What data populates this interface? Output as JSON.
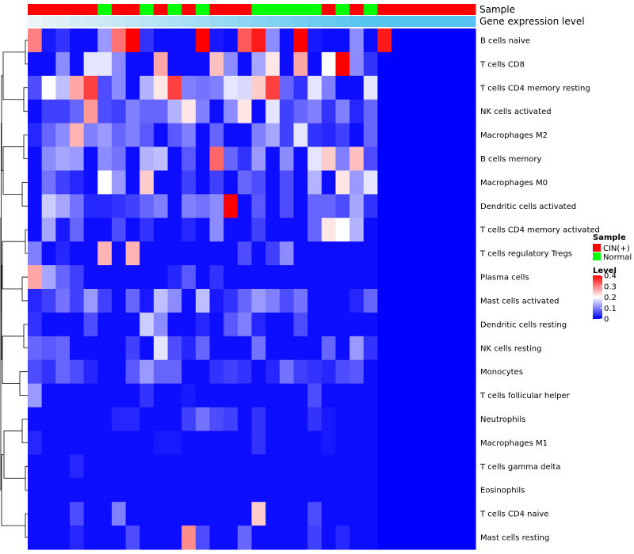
{
  "chart_data": {
    "type": "heatmap",
    "title": "",
    "annotation_tracks": [
      "Sample",
      "Gene expression level"
    ],
    "sample_groups": [
      "CIN(+)",
      "CIN(+)",
      "CIN(+)",
      "CIN(+)",
      "CIN(+)",
      "Normal",
      "CIN(+)",
      "CIN(+)",
      "Normal",
      "CIN(+)",
      "Normal",
      "CIN(+)",
      "Normal",
      "CIN(+)",
      "CIN(+)",
      "CIN(+)",
      "Normal",
      "Normal",
      "Normal",
      "Normal",
      "Normal",
      "CIN(+)",
      "Normal",
      "CIN(+)",
      "Normal",
      "CIN(+)",
      "CIN(+)",
      "CIN(+)",
      "CIN(+)",
      "CIN(+)",
      "CIN(+)",
      "CIN(+)"
    ],
    "gene_expression_level": [
      0.05,
      0.1,
      0.14,
      0.18,
      0.22,
      0.25,
      0.29,
      0.33,
      0.37,
      0.41,
      0.45,
      0.49,
      0.53,
      0.57,
      0.61,
      0.65,
      0.69,
      0.73,
      0.77,
      0.81,
      0.85,
      0.89,
      0.93,
      0.97,
      1.0,
      1.0,
      1.0,
      1.0,
      1.0,
      1.0,
      1.0,
      1.0
    ],
    "rows": [
      "B cells naive",
      "T cells CD8",
      "T cells CD4 memory resting",
      "NK cells activated",
      "Macrophages M2",
      "B cells memory",
      "Macrophages M0",
      "Dendritic cells activated",
      "T cells CD4 memory activated",
      "T cells regulatory  Tregs",
      "Plasma cells",
      "Mast cells activated",
      "Dendritic cells resting",
      "NK cells resting",
      "Monocytes",
      "T cells follicular helper",
      "Neutrophils",
      "Macrophages M1",
      "T cells gamma delta",
      "Eosinophils",
      "T cells CD4 naive",
      "Mast cells resting"
    ],
    "values": [
      [
        0.3,
        0.02,
        0.04,
        0.01,
        0.01,
        0.12,
        0.31,
        0.4,
        0.04,
        0.01,
        0.01,
        0.01,
        0.4,
        0.02,
        0.01,
        0.33,
        0.38,
        0.11,
        0.01,
        0.4,
        0.02,
        0.01,
        0.01,
        0.11,
        0.01,
        0.38,
        0.0,
        0.0,
        0.0,
        0.0,
        0.0,
        0.0
      ],
      [
        0.01,
        0.01,
        0.11,
        0.01,
        0.18,
        0.18,
        0.11,
        0.01,
        0.01,
        0.27,
        0.01,
        0.01,
        0.01,
        0.25,
        0.11,
        0.01,
        0.13,
        0.22,
        0.01,
        0.27,
        0.01,
        0.2,
        0.4,
        0.11,
        0.04,
        0.0,
        0.0,
        0.0,
        0.0,
        0.0,
        0.0,
        0.0
      ],
      [
        0.06,
        0.2,
        0.15,
        0.27,
        0.35,
        0.06,
        0.11,
        0.01,
        0.14,
        0.22,
        0.35,
        0.1,
        0.09,
        0.1,
        0.18,
        0.17,
        0.24,
        0.35,
        0.08,
        0.04,
        0.18,
        0.1,
        0.01,
        0.01,
        0.18,
        0.0,
        0.0,
        0.0,
        0.0,
        0.0,
        0.0,
        0.0
      ],
      [
        0.01,
        0.05,
        0.05,
        0.08,
        0.28,
        0.06,
        0.05,
        0.1,
        0.08,
        0.08,
        0.14,
        0.22,
        0.1,
        0.01,
        0.11,
        0.22,
        0.01,
        0.18,
        0.05,
        0.08,
        0.1,
        0.04,
        0.1,
        0.03,
        0.08,
        0.0,
        0.0,
        0.0,
        0.0,
        0.0,
        0.0,
        0.0
      ],
      [
        0.03,
        0.08,
        0.11,
        0.26,
        0.1,
        0.12,
        0.08,
        0.1,
        0.07,
        0.01,
        0.07,
        0.1,
        0.01,
        0.08,
        0.01,
        0.01,
        0.1,
        0.13,
        0.05,
        0.18,
        0.04,
        0.03,
        0.05,
        0.01,
        0.08,
        0.0,
        0.0,
        0.0,
        0.0,
        0.0,
        0.0,
        0.0
      ],
      [
        0.01,
        0.11,
        0.13,
        0.12,
        0.01,
        0.11,
        0.09,
        0.01,
        0.14,
        0.15,
        0.01,
        0.07,
        0.01,
        0.32,
        0.08,
        0.04,
        0.12,
        0.01,
        0.11,
        0.01,
        0.18,
        0.24,
        0.1,
        0.25,
        0.06,
        0.0,
        0.0,
        0.0,
        0.0,
        0.0,
        0.0,
        0.0
      ],
      [
        0.01,
        0.09,
        0.05,
        0.03,
        0.01,
        0.2,
        0.12,
        0.01,
        0.24,
        0.01,
        0.01,
        0.05,
        0.01,
        0.05,
        0.01,
        0.08,
        0.06,
        0.01,
        0.06,
        0.01,
        0.14,
        0.01,
        0.22,
        0.12,
        0.18,
        0.0,
        0.0,
        0.0,
        0.0,
        0.0,
        0.0,
        0.0
      ],
      [
        0.01,
        0.16,
        0.13,
        0.09,
        0.03,
        0.03,
        0.04,
        0.05,
        0.08,
        0.1,
        0.01,
        0.1,
        0.09,
        0.11,
        0.4,
        0.01,
        0.07,
        0.01,
        0.06,
        0.01,
        0.08,
        0.08,
        0.06,
        0.13,
        0.04,
        0.0,
        0.0,
        0.0,
        0.0,
        0.0,
        0.0,
        0.0
      ],
      [
        0.01,
        0.13,
        0.02,
        0.08,
        0.01,
        0.01,
        0.06,
        0.01,
        0.04,
        0.01,
        0.01,
        0.03,
        0.01,
        0.11,
        0.01,
        0.01,
        0.05,
        0.01,
        0.01,
        0.01,
        0.08,
        0.22,
        0.2,
        0.14,
        0.01,
        0.0,
        0.0,
        0.0,
        0.0,
        0.0,
        0.0,
        0.0
      ],
      [
        0.1,
        0.01,
        0.03,
        0.01,
        0.01,
        0.26,
        0.01,
        0.26,
        0.01,
        0.01,
        0.01,
        0.01,
        0.01,
        0.01,
        0.01,
        0.06,
        0.01,
        0.05,
        0.11,
        0.01,
        0.01,
        0.01,
        0.01,
        0.01,
        0.01,
        0.0,
        0.0,
        0.0,
        0.0,
        0.0,
        0.0,
        0.0
      ],
      [
        0.27,
        0.13,
        0.08,
        0.05,
        0.01,
        0.01,
        0.01,
        0.01,
        0.01,
        0.01,
        0.03,
        0.07,
        0.01,
        0.04,
        0.01,
        0.01,
        0.01,
        0.01,
        0.01,
        0.01,
        0.01,
        0.01,
        0.01,
        0.01,
        0.01,
        0.0,
        0.0,
        0.0,
        0.0,
        0.0,
        0.0,
        0.0
      ],
      [
        0.03,
        0.05,
        0.09,
        0.05,
        0.12,
        0.05,
        0.01,
        0.08,
        0.02,
        0.15,
        0.11,
        0.01,
        0.15,
        0.02,
        0.04,
        0.08,
        0.12,
        0.1,
        0.06,
        0.09,
        0.01,
        0.01,
        0.01,
        0.03,
        0.08,
        0.0,
        0.0,
        0.0,
        0.0,
        0.0,
        0.0,
        0.0
      ],
      [
        0.04,
        0.01,
        0.01,
        0.01,
        0.06,
        0.01,
        0.01,
        0.01,
        0.16,
        0.11,
        0.01,
        0.01,
        0.03,
        0.01,
        0.07,
        0.1,
        0.03,
        0.01,
        0.01,
        0.06,
        0.01,
        0.01,
        0.01,
        0.01,
        0.01,
        0.0,
        0.0,
        0.0,
        0.0,
        0.0,
        0.0,
        0.0
      ],
      [
        0.08,
        0.07,
        0.08,
        0.01,
        0.01,
        0.01,
        0.01,
        0.05,
        0.01,
        0.18,
        0.06,
        0.03,
        0.08,
        0.01,
        0.01,
        0.01,
        0.09,
        0.01,
        0.01,
        0.01,
        0.01,
        0.08,
        0.01,
        0.12,
        0.04,
        0.0,
        0.0,
        0.0,
        0.0,
        0.0,
        0.0,
        0.0
      ],
      [
        0.06,
        0.04,
        0.08,
        0.06,
        0.03,
        0.01,
        0.01,
        0.07,
        0.12,
        0.08,
        0.08,
        0.01,
        0.01,
        0.04,
        0.05,
        0.04,
        0.01,
        0.03,
        0.09,
        0.05,
        0.04,
        0.03,
        0.06,
        0.07,
        0.01,
        0.0,
        0.0,
        0.0,
        0.0,
        0.0,
        0.0,
        0.0
      ],
      [
        0.12,
        0.01,
        0.01,
        0.01,
        0.01,
        0.01,
        0.01,
        0.01,
        0.04,
        0.01,
        0.01,
        0.02,
        0.01,
        0.01,
        0.01,
        0.01,
        0.01,
        0.01,
        0.01,
        0.01,
        0.06,
        0.01,
        0.01,
        0.01,
        0.01,
        0.0,
        0.0,
        0.0,
        0.0,
        0.0,
        0.0,
        0.0
      ],
      [
        0.01,
        0.01,
        0.01,
        0.01,
        0.01,
        0.01,
        0.03,
        0.03,
        0.01,
        0.01,
        0.01,
        0.05,
        0.09,
        0.06,
        0.05,
        0.01,
        0.04,
        0.01,
        0.01,
        0.01,
        0.04,
        0.02,
        0.01,
        0.01,
        0.01,
        0.0,
        0.0,
        0.0,
        0.0,
        0.0,
        0.0,
        0.0
      ],
      [
        0.03,
        0.01,
        0.01,
        0.01,
        0.01,
        0.01,
        0.01,
        0.01,
        0.01,
        0.02,
        0.02,
        0.01,
        0.01,
        0.01,
        0.01,
        0.01,
        0.04,
        0.01,
        0.01,
        0.01,
        0.01,
        0.02,
        0.01,
        0.01,
        0.01,
        0.0,
        0.0,
        0.0,
        0.0,
        0.0,
        0.0,
        0.0
      ],
      [
        0.01,
        0.01,
        0.01,
        0.03,
        0.01,
        0.01,
        0.01,
        0.01,
        0.01,
        0.01,
        0.01,
        0.01,
        0.01,
        0.01,
        0.01,
        0.01,
        0.01,
        0.01,
        0.01,
        0.01,
        0.01,
        0.01,
        0.01,
        0.01,
        0.01,
        0.0,
        0.0,
        0.0,
        0.0,
        0.0,
        0.0,
        0.0
      ],
      [
        0.01,
        0.01,
        0.01,
        0.01,
        0.01,
        0.01,
        0.01,
        0.01,
        0.01,
        0.01,
        0.01,
        0.01,
        0.01,
        0.01,
        0.01,
        0.01,
        0.01,
        0.01,
        0.01,
        0.01,
        0.01,
        0.01,
        0.01,
        0.01,
        0.01,
        0.0,
        0.0,
        0.0,
        0.0,
        0.0,
        0.0,
        0.0
      ],
      [
        0.01,
        0.01,
        0.01,
        0.06,
        0.01,
        0.01,
        0.1,
        0.01,
        0.01,
        0.01,
        0.01,
        0.01,
        0.01,
        0.01,
        0.01,
        0.01,
        0.24,
        0.01,
        0.01,
        0.01,
        0.06,
        0.01,
        0.01,
        0.01,
        0.01,
        0.0,
        0.0,
        0.0,
        0.0,
        0.0,
        0.0,
        0.0
      ],
      [
        0.01,
        0.01,
        0.01,
        0.03,
        0.01,
        0.01,
        0.01,
        0.06,
        0.01,
        0.01,
        0.01,
        0.29,
        0.06,
        0.01,
        0.01,
        0.08,
        0.01,
        0.01,
        0.01,
        0.01,
        0.05,
        0.01,
        0.03,
        0.01,
        0.01,
        0.0,
        0.0,
        0.0,
        0.0,
        0.0,
        0.0,
        0.0
      ]
    ],
    "legend": {
      "sample": {
        "title": "Sample",
        "entries": [
          {
            "label": "CIN(+)",
            "color": "#ff0000"
          },
          {
            "label": "Normal",
            "color": "#00ff00"
          }
        ]
      },
      "level": {
        "title": "Level",
        "ticks": [
          0.4,
          0.3,
          0.2,
          0.1,
          0
        ],
        "min": 0,
        "max": 0.4,
        "colors": [
          "#0000ff",
          "#ffffff",
          "#ff0000"
        ]
      }
    }
  }
}
